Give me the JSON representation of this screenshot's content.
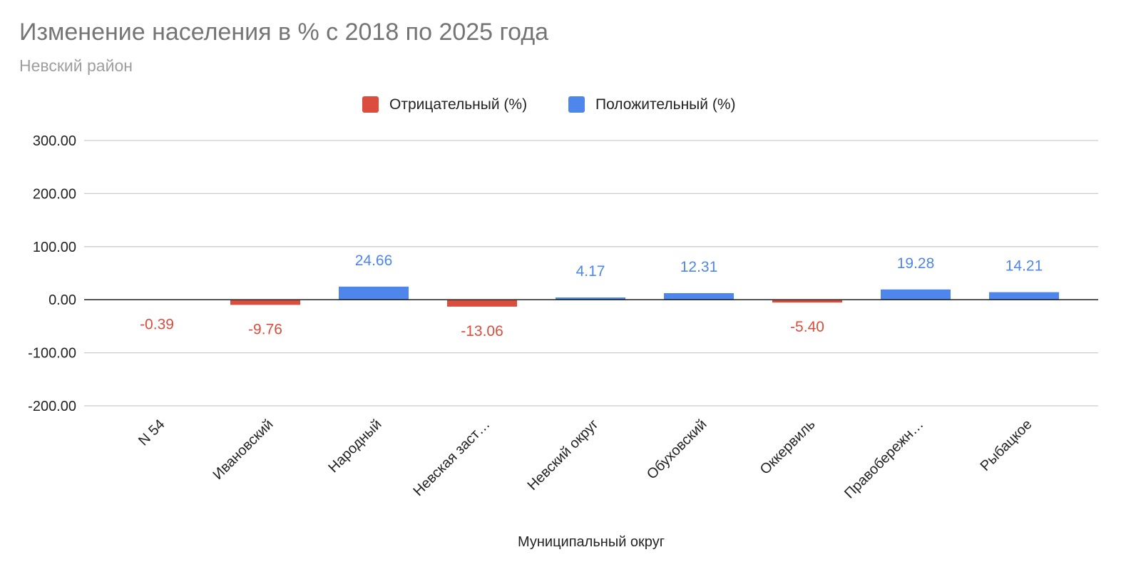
{
  "chart_data": {
    "type": "bar",
    "title": "Изменение населения в % с 2018 по 2025 года",
    "subtitle": "Невский район",
    "xlabel": "Муниципальный округ",
    "ylabel": "",
    "ylim": [
      -200,
      300
    ],
    "yticks": [
      300,
      200,
      100,
      0,
      -100,
      -200
    ],
    "ytick_labels": [
      "300.00",
      "200.00",
      "100.00",
      "0.00",
      "-100.00",
      "-200.00"
    ],
    "grid": true,
    "legend_position": "top",
    "categories": [
      "N 54",
      "Ивановский",
      "Народный",
      "Невская заст…",
      "Невский округ",
      "Обуховский",
      "Оккервиль",
      "Правобережн…",
      "Рыбацкое"
    ],
    "series": [
      {
        "name": "Отрицательный (%)",
        "color": "#db4d3c",
        "values": [
          -0.39,
          -9.76,
          null,
          -13.06,
          null,
          null,
          -5.4,
          null,
          null
        ],
        "labels": [
          "-0.39",
          "-9.76",
          null,
          "-13.06",
          null,
          null,
          "-5.40",
          null,
          null
        ]
      },
      {
        "name": "Положительный (%)",
        "color": "#4e86ec",
        "values": [
          null,
          null,
          24.66,
          null,
          4.17,
          12.31,
          null,
          19.28,
          14.21
        ],
        "labels": [
          null,
          null,
          "24.66",
          null,
          "4.17",
          "12.31",
          null,
          "19.28",
          "14.21"
        ]
      }
    ]
  }
}
